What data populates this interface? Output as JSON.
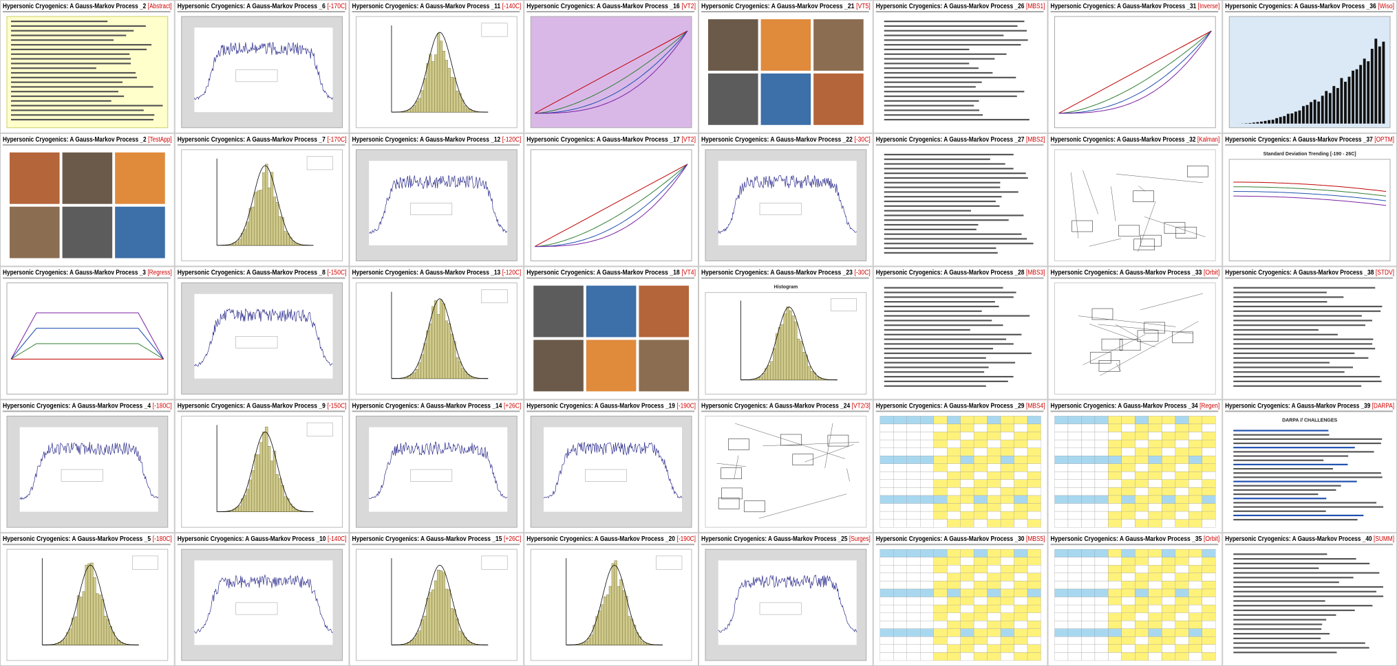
{
  "slides": [
    {
      "title": "Hypersonic Cryogenics: A Gauss-Markov Process _2",
      "tag": "[Abstract]"
    },
    {
      "title": "Hypersonic Cryogenics: A Gauss-Markov Process _2",
      "tag": "[TestApp]"
    },
    {
      "title": "Hypersonic Cryogenics: A Gauss-Markov Process _3",
      "tag": "[Regress]"
    },
    {
      "title": "Hypersonic Cryogenics: A Gauss-Markov Process _4",
      "tag": "[-180C]"
    },
    {
      "title": "Hypersonic Cryogenics: A Gauss-Markov Process _5",
      "tag": "[-180C]"
    },
    {
      "title": "Hypersonic Cryogenics: A Gauss-Markov Process _6",
      "tag": "[-170C]"
    },
    {
      "title": "Hypersonic Cryogenics: A Gauss-Markov Process _7",
      "tag": "[-170C]"
    },
    {
      "title": "Hypersonic Cryogenics: A Gauss-Markov Process _8",
      "tag": "[-150C]"
    },
    {
      "title": "Hypersonic Cryogenics: A Gauss-Markov Process _9",
      "tag": "[-150C]"
    },
    {
      "title": "Hypersonic Cryogenics: A Gauss-Markov Process _10",
      "tag": "[-140C]"
    },
    {
      "title": "Hypersonic Cryogenics: A Gauss-Markov Process _11",
      "tag": "[-140C]"
    },
    {
      "title": "Hypersonic Cryogenics: A Gauss-Markov Process _12",
      "tag": "[-120C]"
    },
    {
      "title": "Hypersonic Cryogenics: A Gauss-Markov Process _13",
      "tag": "[-120C]"
    },
    {
      "title": "Hypersonic Cryogenics: A Gauss-Markov Process _14",
      "tag": "[+26C]"
    },
    {
      "title": "Hypersonic Cryogenics: A Gauss-Markov Process _15",
      "tag": "[+26C]"
    },
    {
      "title": "Hypersonic Cryogenics: A Gauss-Markov Process _16",
      "tag": "[VT2]"
    },
    {
      "title": "Hypersonic Cryogenics: A Gauss-Markov Process _17",
      "tag": "[VT2]"
    },
    {
      "title": "Hypersonic Cryogenics: A Gauss-Markov Process _18",
      "tag": "[VT4]"
    },
    {
      "title": "Hypersonic Cryogenics: A Gauss-Markov Process _19",
      "tag": "[-190C]"
    },
    {
      "title": "Hypersonic Cryogenics: A Gauss-Markov Process _20",
      "tag": "[-190C]"
    },
    {
      "title": "Hypersonic Cryogenics: A Gauss-Markov Process _21",
      "tag": "[VT5]"
    },
    {
      "title": "Hypersonic Cryogenics: A Gauss-Markov Process _22",
      "tag": "[-30C]"
    },
    {
      "title": "Hypersonic Cryogenics: A Gauss-Markov Process _23",
      "tag": "[-30C]",
      "heading": "Histogram"
    },
    {
      "title": "Hypersonic Cryogenics: A Gauss-Markov Process _24",
      "tag": "[VT2/3]"
    },
    {
      "title": "Hypersonic Cryogenics: A Gauss-Markov Process _25",
      "tag": "[Surges]"
    },
    {
      "title": "Hypersonic Cryogenics: A Gauss-Markov Process _26",
      "tag": "[MBS1]"
    },
    {
      "title": "Hypersonic Cryogenics: A Gauss-Markov Process _27",
      "tag": "[MBS2]"
    },
    {
      "title": "Hypersonic Cryogenics: A Gauss-Markov Process _28",
      "tag": "[MBS3]"
    },
    {
      "title": "Hypersonic Cryogenics: A Gauss-Markov Process _29",
      "tag": "[MBS4]"
    },
    {
      "title": "Hypersonic Cryogenics: A Gauss-Markov Process _30",
      "tag": "[MBS5]"
    },
    {
      "title": "Hypersonic Cryogenics: A Gauss-Markov Process _31",
      "tag": "[Inverse]"
    },
    {
      "title": "Hypersonic Cryogenics: A Gauss-Markov Process _32",
      "tag": "[Kalman]"
    },
    {
      "title": "Hypersonic Cryogenics: A Gauss-Markov Process _33",
      "tag": "[Orbit]"
    },
    {
      "title": "Hypersonic Cryogenics: A Gauss-Markov Process _34",
      "tag": "[Regen]"
    },
    {
      "title": "Hypersonic Cryogenics: A Gauss-Markov Process _35",
      "tag": "[Orbit]"
    },
    {
      "title": "Hypersonic Cryogenics: A Gauss-Markov Process _36",
      "tag": "[Wiso]"
    },
    {
      "title": "Hypersonic Cryogenics: A Gauss-Markov Process _37",
      "tag": "[OPTM]",
      "heading": "Standard Deviation Trending [-190 - 26C]"
    },
    {
      "title": "Hypersonic Cryogenics: A Gauss-Markov Process _38",
      "tag": "[STDV]"
    },
    {
      "title": "Hypersonic Cryogenics: A Gauss-Markov Process _39",
      "tag": "[DARPA]",
      "heading": "DARPA // CHALLENGES"
    },
    {
      "title": "Hypersonic Cryogenics: A Gauss-Markov Process _40",
      "tag": "[SUMM]"
    }
  ]
}
